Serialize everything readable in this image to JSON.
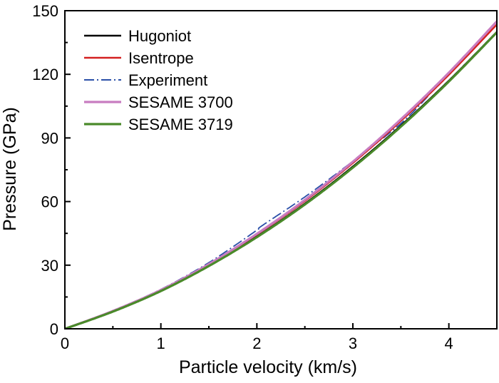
{
  "chart_data": {
    "type": "line",
    "title": "",
    "xlabel": "Particle velocity (km/s)",
    "ylabel": "Pressure (GPa)",
    "xlim": [
      0,
      4.5
    ],
    "ylim": [
      0,
      150
    ],
    "x_ticks": [
      "0",
      "1",
      "2",
      "3",
      "4"
    ],
    "y_ticks": [
      "0",
      "30",
      "60",
      "90",
      "120",
      "150"
    ],
    "grid": false,
    "legend_position": "top-left",
    "series": [
      {
        "name": "Hugoniot",
        "color": "#000000",
        "style": "solid",
        "x": [
          0,
          0.5,
          1.0,
          1.5,
          2.0,
          2.5,
          3.0,
          3.5,
          4.0,
          4.5
        ],
        "y": [
          0,
          8.2,
          18.0,
          29.8,
          43.5,
          59.0,
          76.5,
          95.8,
          117.0,
          140.0
        ]
      },
      {
        "name": "Isentrope",
        "color": "#d42020",
        "style": "solid",
        "x": [
          0,
          0.5,
          1.0,
          1.5,
          2.0,
          2.5,
          3.0,
          3.5,
          4.0,
          4.5
        ],
        "y": [
          0,
          8.3,
          18.2,
          30.3,
          44.5,
          60.3,
          78.2,
          98.0,
          119.8,
          143.5
        ]
      },
      {
        "name": "Experiment",
        "color": "#2a4fa8",
        "style": "dash-dot",
        "x": [
          0,
          0.5,
          1.0,
          1.5,
          2.0,
          2.05,
          2.5,
          3.0,
          3.5,
          3.8
        ],
        "y": [
          0,
          8.6,
          18.6,
          31.2,
          46.5,
          48.5,
          62.2,
          79.0,
          96.8,
          110.5
        ]
      },
      {
        "name": "SESAME 3700",
        "color": "#c87cc0",
        "style": "solid",
        "x": [
          0,
          0.5,
          1.0,
          1.5,
          2.0,
          2.5,
          3.0,
          3.5,
          4.0,
          4.5
        ],
        "y": [
          0,
          8.4,
          18.3,
          30.5,
          44.8,
          60.8,
          78.8,
          98.8,
          120.8,
          145.0
        ]
      },
      {
        "name": "SESAME 3719",
        "color": "#4a8a2a",
        "style": "solid",
        "x": [
          0,
          0.5,
          1.0,
          1.5,
          2.0,
          2.5,
          3.0,
          3.5,
          4.0,
          4.5
        ],
        "y": [
          0,
          8.1,
          17.8,
          29.6,
          43.2,
          58.6,
          76.0,
          95.3,
          116.6,
          139.8
        ]
      }
    ]
  }
}
